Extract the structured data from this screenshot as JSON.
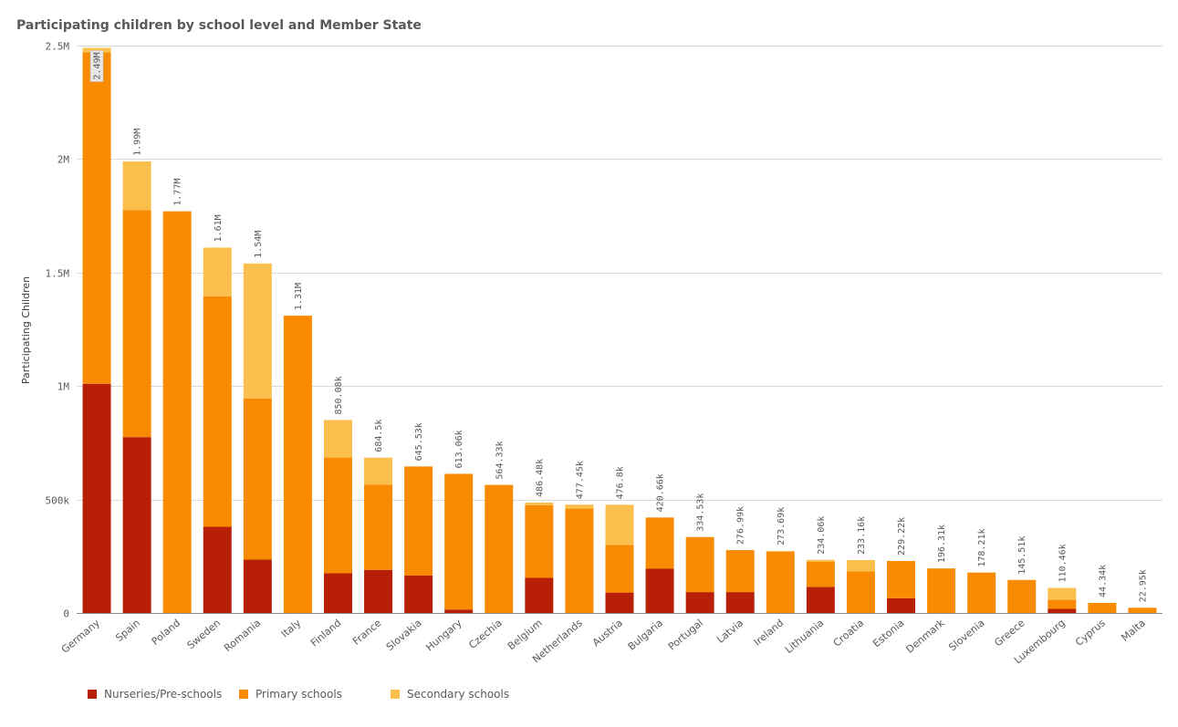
{
  "title": "Participating children by school level and Member State",
  "chart_data": {
    "type": "bar",
    "stacked": true,
    "title": "Participating children by school level and Member State",
    "ylabel": "Participating Children",
    "xlabel": "",
    "ylim": [
      0,
      2500000
    ],
    "yticks": [
      0,
      500000,
      1000000,
      1500000,
      2000000,
      2500000
    ],
    "ytick_labels": [
      "0",
      "500k",
      "1M",
      "1.5M",
      "2M",
      "2.5M"
    ],
    "grid": true,
    "legend_position": "bottom-left",
    "categories": [
      "Germany",
      "Spain",
      "Poland",
      "Sweden",
      "Romania",
      "Italy",
      "Finland",
      "France",
      "Slovakia",
      "Hungary",
      "Czechia",
      "Belgium",
      "Netherlands",
      "Austria",
      "Bulgaria",
      "Portugal",
      "Latvia",
      "Ireland",
      "Lithuania",
      "Croatia",
      "Estonia",
      "Denmark",
      "Slovenia",
      "Greece",
      "Luxembourg",
      "Cyprus",
      "Malta"
    ],
    "totals_labels": [
      "2.49M",
      "1.99M",
      "1.77M",
      "1.61M",
      "1.54M",
      "1.31M",
      "850.08k",
      "684.5k",
      "645.53k",
      "613.06k",
      "564.33k",
      "486.48k",
      "477.45k",
      "476.8k",
      "420.66k",
      "334.53k",
      "276.99k",
      "273.69k",
      "234.06k",
      "233.16k",
      "229.22k",
      "196.31k",
      "178.21k",
      "145.51k",
      "110.46k",
      "44.34k",
      "22.95k"
    ],
    "series": [
      {
        "name": "Nurseries/Pre-schools",
        "color": "#b81f07",
        "values": [
          1010000,
          775000,
          0,
          380000,
          235000,
          0,
          175000,
          190000,
          165000,
          15000,
          0,
          155000,
          0,
          90000,
          195000,
          92000,
          92000,
          0,
          115000,
          0,
          65000,
          0,
          0,
          0,
          18000,
          0,
          0
        ]
      },
      {
        "name": "Primary schools",
        "color": "#f98b02",
        "values": [
          1460000,
          1000000,
          1770000,
          1015000,
          710000,
          1310000,
          510000,
          375000,
          480530,
          598060,
          564330,
          320000,
          460000,
          210000,
          225660,
          242530,
          184990,
          270000,
          110000,
          183160,
          164220,
          196310,
          178210,
          145510,
          40000,
          44340,
          22950
        ]
      },
      {
        "name": "Secondary schools",
        "color": "#fbbf4d",
        "values": [
          20000,
          215000,
          0,
          215000,
          595000,
          0,
          165080,
          119500,
          0,
          0,
          0,
          11480,
          17450,
          176800,
          0,
          0,
          0,
          3690,
          9060,
          50000,
          0,
          0,
          0,
          0,
          52460,
          0,
          0
        ]
      }
    ]
  }
}
